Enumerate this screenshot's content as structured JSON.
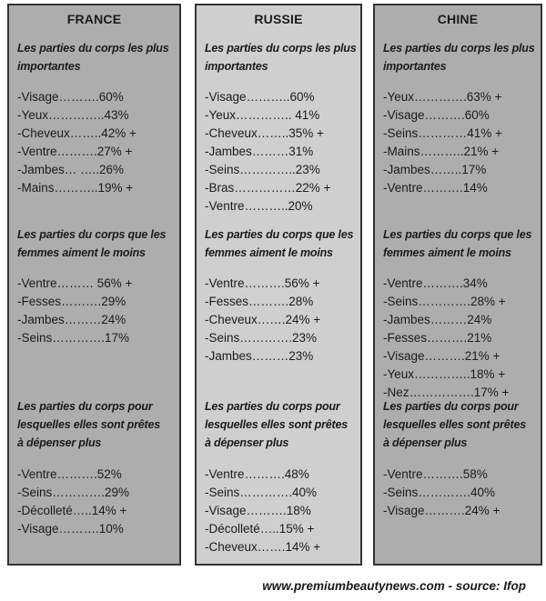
{
  "page": {
    "footer": "www.premiumbeautynews.com - source: Ifop"
  },
  "colors": {
    "panel_dark_gray": "#adadad",
    "panel_light_gray": "#cfcfcf",
    "panel_border": "#333333",
    "text": "#1b1b1b",
    "page_background": "#ffffff"
  },
  "headings": {
    "most_important": {
      "lines": [
        "Les parties du corps les plus",
        "importantes"
      ]
    },
    "least_liked": {
      "lines": [
        "Les parties du corps que les",
        "femmes aiment le moins"
      ]
    },
    "spend_more": {
      "lines": [
        "Les parties du corps pour",
        "lesquelles elles sont prêtes",
        "à dépenser plus"
      ]
    }
  },
  "columns": [
    {
      "title": "FRANCE",
      "sections": [
        {
          "items": [
            "-Visage……….60%",
            "-Yeux…………..43%",
            "-Cheveux……..42% +",
            "-Ventre……….27% +",
            "-Jambes… …..26%",
            "-Mains………..19% +"
          ]
        },
        {
          "items": [
            "-Ventre……… 56% +",
            "-Fesses……….29%",
            "-Jambes………24%",
            "-Seins………….17%"
          ]
        },
        {
          "items": [
            "-Ventre……….52%",
            "-Seins………….29%",
            "-Décolleté…..14% +",
            "-Visage……….10%"
          ]
        }
      ]
    },
    {
      "title": "RUSSIE",
      "sections": [
        {
          "items": [
            "-Visage………..60%",
            "-Yeux………….. 41%",
            "-Cheveux……..35% +",
            "-Jambes………31%",
            "-Seins…………..23%",
            "-Bras……………22% +",
            "-Ventre………..20%"
          ]
        },
        {
          "items": [
            "-Ventre……….56% +",
            "-Fesses……….28%",
            "-Cheveux…….24% +",
            "-Seins………….23%",
            "-Jambes………23%"
          ]
        },
        {
          "items": [
            "-Ventre……….48%",
            "-Seins………….40%",
            "-Visage……….18%",
            "-Décolleté…..15% +",
            "-Cheveux…….14% +"
          ]
        }
      ]
    },
    {
      "title": "CHINE",
      "sections": [
        {
          "items": [
            "-Yeux………….63% +",
            "-Visage……….60%",
            "-Seins…………41% +",
            "-Mains………..21% +",
            "-Jambes……..17%",
            "-Ventre……….14%"
          ]
        },
        {
          "items": [
            "-Ventre……….34%",
            "-Seins………….28% +",
            "-Jambes………24%",
            "-Fesses……….21%",
            "-Visage……….21% +",
            "-Yeux…………..18% +",
            "-Nez…………….17% +"
          ]
        },
        {
          "items": [
            "-Ventre……….58%",
            "-Seins………….40%",
            "-Visage……….24% +"
          ]
        }
      ]
    }
  ],
  "chart_data": {
    "type": "table",
    "title": "Parties du corps : comparaison France / Russie / Chine",
    "columns": [
      "FRANCE",
      "RUSSIE",
      "CHINE"
    ],
    "sections": [
      {
        "label": "Les parties du corps les plus importantes",
        "FRANCE": [
          {
            "part": "Visage",
            "pct": 60,
            "plus": false
          },
          {
            "part": "Yeux",
            "pct": 43,
            "plus": false
          },
          {
            "part": "Cheveux",
            "pct": 42,
            "plus": true
          },
          {
            "part": "Ventre",
            "pct": 27,
            "plus": true
          },
          {
            "part": "Jambes",
            "pct": 26,
            "plus": false
          },
          {
            "part": "Mains",
            "pct": 19,
            "plus": true
          }
        ],
        "RUSSIE": [
          {
            "part": "Visage",
            "pct": 60,
            "plus": false
          },
          {
            "part": "Yeux",
            "pct": 41,
            "plus": false
          },
          {
            "part": "Cheveux",
            "pct": 35,
            "plus": true
          },
          {
            "part": "Jambes",
            "pct": 31,
            "plus": false
          },
          {
            "part": "Seins",
            "pct": 23,
            "plus": false
          },
          {
            "part": "Bras",
            "pct": 22,
            "plus": true
          },
          {
            "part": "Ventre",
            "pct": 20,
            "plus": false
          }
        ],
        "CHINE": [
          {
            "part": "Yeux",
            "pct": 63,
            "plus": true
          },
          {
            "part": "Visage",
            "pct": 60,
            "plus": false
          },
          {
            "part": "Seins",
            "pct": 41,
            "plus": true
          },
          {
            "part": "Mains",
            "pct": 21,
            "plus": true
          },
          {
            "part": "Jambes",
            "pct": 17,
            "plus": false
          },
          {
            "part": "Ventre",
            "pct": 14,
            "plus": false
          }
        ]
      },
      {
        "label": "Les parties du corps que les femmes aiment le moins",
        "FRANCE": [
          {
            "part": "Ventre",
            "pct": 56,
            "plus": true
          },
          {
            "part": "Fesses",
            "pct": 29,
            "plus": false
          },
          {
            "part": "Jambes",
            "pct": 24,
            "plus": false
          },
          {
            "part": "Seins",
            "pct": 17,
            "plus": false
          }
        ],
        "RUSSIE": [
          {
            "part": "Ventre",
            "pct": 56,
            "plus": true
          },
          {
            "part": "Fesses",
            "pct": 28,
            "plus": false
          },
          {
            "part": "Cheveux",
            "pct": 24,
            "plus": true
          },
          {
            "part": "Seins",
            "pct": 23,
            "plus": false
          },
          {
            "part": "Jambes",
            "pct": 23,
            "plus": false
          }
        ],
        "CHINE": [
          {
            "part": "Ventre",
            "pct": 34,
            "plus": false
          },
          {
            "part": "Seins",
            "pct": 28,
            "plus": true
          },
          {
            "part": "Jambes",
            "pct": 24,
            "plus": false
          },
          {
            "part": "Fesses",
            "pct": 21,
            "plus": false
          },
          {
            "part": "Visage",
            "pct": 21,
            "plus": true
          },
          {
            "part": "Yeux",
            "pct": 18,
            "plus": true
          },
          {
            "part": "Nez",
            "pct": 17,
            "plus": true
          }
        ]
      },
      {
        "label": "Les parties du corps pour lesquelles elles sont prêtes à dépenser plus",
        "FRANCE": [
          {
            "part": "Ventre",
            "pct": 52,
            "plus": false
          },
          {
            "part": "Seins",
            "pct": 29,
            "plus": false
          },
          {
            "part": "Décolleté",
            "pct": 14,
            "plus": true
          },
          {
            "part": "Visage",
            "pct": 10,
            "plus": false
          }
        ],
        "RUSSIE": [
          {
            "part": "Ventre",
            "pct": 48,
            "plus": false
          },
          {
            "part": "Seins",
            "pct": 40,
            "plus": false
          },
          {
            "part": "Visage",
            "pct": 18,
            "plus": false
          },
          {
            "part": "Décolleté",
            "pct": 15,
            "plus": true
          },
          {
            "part": "Cheveux",
            "pct": 14,
            "plus": true
          }
        ],
        "CHINE": [
          {
            "part": "Ventre",
            "pct": 58,
            "plus": false
          },
          {
            "part": "Seins",
            "pct": 40,
            "plus": false
          },
          {
            "part": "Visage",
            "pct": 24,
            "plus": true
          }
        ]
      }
    ],
    "source": "www.premiumbeautynews.com - source: Ifop"
  }
}
